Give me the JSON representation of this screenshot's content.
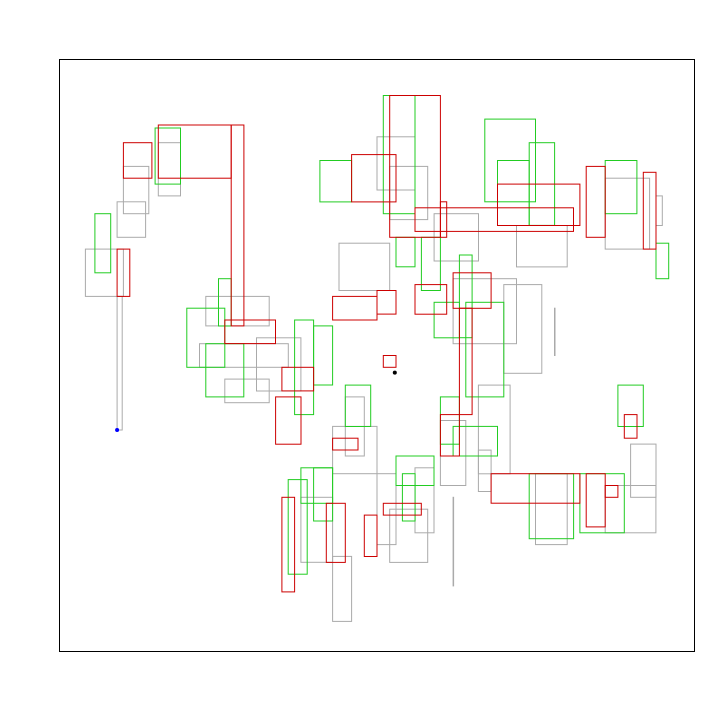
{
  "chart_data": {
    "type": "line",
    "title": "",
    "xlabel": "",
    "ylabel": "",
    "xlim": [
      0,
      1
    ],
    "ylim": [
      0,
      1
    ],
    "grid": false,
    "legend": "none",
    "colors": {
      "gray": "#aaaaaa",
      "green": "#22cc22",
      "red": "#cc0000",
      "start_marker": "#0000ff",
      "end_marker": "#000000"
    },
    "start_point": [
      0.09,
      0.374
    ],
    "end_point": [
      0.528,
      0.471
    ],
    "series": [
      {
        "color_key": "gray",
        "rects": [
          [
            0.09,
            0.374,
            0.098,
            0.6
          ],
          [
            0.04,
            0.6,
            0.1,
            0.68
          ],
          [
            0.09,
            0.7,
            0.135,
            0.76
          ],
          [
            0.1,
            0.74,
            0.14,
            0.82
          ],
          [
            0.155,
            0.77,
            0.19,
            0.86
          ],
          [
            0.23,
            0.6,
            0.33,
            0.55
          ],
          [
            0.22,
            0.48,
            0.36,
            0.52
          ],
          [
            0.26,
            0.46,
            0.33,
            0.42
          ],
          [
            0.31,
            0.44,
            0.38,
            0.53
          ],
          [
            0.44,
            0.61,
            0.52,
            0.69
          ],
          [
            0.52,
            0.73,
            0.58,
            0.82
          ],
          [
            0.5,
            0.78,
            0.56,
            0.87
          ],
          [
            0.59,
            0.66,
            0.66,
            0.74
          ],
          [
            0.62,
            0.52,
            0.72,
            0.63
          ],
          [
            0.66,
            0.3,
            0.71,
            0.45
          ],
          [
            0.7,
            0.47,
            0.76,
            0.62
          ],
          [
            0.78,
            0.5,
            0.78,
            0.58
          ],
          [
            0.72,
            0.65,
            0.8,
            0.72
          ],
          [
            0.86,
            0.68,
            0.93,
            0.8
          ],
          [
            0.94,
            0.72,
            0.95,
            0.77
          ],
          [
            0.75,
            0.18,
            0.8,
            0.3
          ],
          [
            0.86,
            0.2,
            0.94,
            0.28
          ],
          [
            0.9,
            0.26,
            0.94,
            0.35
          ],
          [
            0.62,
            0.11,
            0.62,
            0.26
          ],
          [
            0.52,
            0.15,
            0.58,
            0.24
          ],
          [
            0.5,
            0.18,
            0.53,
            0.3
          ],
          [
            0.43,
            0.05,
            0.46,
            0.16
          ],
          [
            0.38,
            0.15,
            0.43,
            0.26
          ],
          [
            0.43,
            0.3,
            0.5,
            0.38
          ],
          [
            0.45,
            0.33,
            0.48,
            0.43
          ],
          [
            0.6,
            0.28,
            0.64,
            0.39
          ],
          [
            0.66,
            0.27,
            0.68,
            0.34
          ],
          [
            0.56,
            0.2,
            0.59,
            0.31
          ]
        ]
      },
      {
        "color_key": "green",
        "rects": [
          [
            0.055,
            0.64,
            0.08,
            0.74
          ],
          [
            0.15,
            0.79,
            0.19,
            0.885
          ],
          [
            0.25,
            0.55,
            0.27,
            0.63
          ],
          [
            0.23,
            0.43,
            0.29,
            0.52
          ],
          [
            0.2,
            0.48,
            0.26,
            0.58
          ],
          [
            0.37,
            0.4,
            0.4,
            0.56
          ],
          [
            0.41,
            0.76,
            0.46,
            0.83
          ],
          [
            0.51,
            0.74,
            0.56,
            0.94
          ],
          [
            0.69,
            0.72,
            0.74,
            0.83
          ],
          [
            0.67,
            0.76,
            0.75,
            0.9
          ],
          [
            0.74,
            0.72,
            0.78,
            0.86
          ],
          [
            0.86,
            0.74,
            0.91,
            0.83
          ],
          [
            0.94,
            0.63,
            0.96,
            0.69
          ],
          [
            0.63,
            0.53,
            0.65,
            0.67
          ],
          [
            0.59,
            0.53,
            0.63,
            0.59
          ],
          [
            0.6,
            0.35,
            0.63,
            0.43
          ],
          [
            0.64,
            0.43,
            0.7,
            0.59
          ],
          [
            0.74,
            0.19,
            0.81,
            0.3
          ],
          [
            0.82,
            0.2,
            0.89,
            0.3
          ],
          [
            0.88,
            0.38,
            0.92,
            0.45
          ],
          [
            0.38,
            0.31,
            0.43,
            0.25
          ],
          [
            0.36,
            0.13,
            0.39,
            0.29
          ],
          [
            0.4,
            0.22,
            0.43,
            0.31
          ],
          [
            0.54,
            0.22,
            0.56,
            0.3
          ],
          [
            0.53,
            0.28,
            0.59,
            0.33
          ],
          [
            0.53,
            0.65,
            0.56,
            0.7
          ],
          [
            0.57,
            0.61,
            0.6,
            0.7
          ],
          [
            0.4,
            0.45,
            0.43,
            0.55
          ],
          [
            0.45,
            0.38,
            0.49,
            0.45
          ],
          [
            0.62,
            0.33,
            0.69,
            0.38
          ]
        ]
      },
      {
        "color_key": "red",
        "rects": [
          [
            0.09,
            0.6,
            0.11,
            0.68
          ],
          [
            0.1,
            0.8,
            0.145,
            0.86
          ],
          [
            0.155,
            0.8,
            0.27,
            0.89
          ],
          [
            0.27,
            0.55,
            0.29,
            0.89
          ],
          [
            0.26,
            0.52,
            0.34,
            0.56
          ],
          [
            0.43,
            0.56,
            0.5,
            0.6
          ],
          [
            0.46,
            0.76,
            0.53,
            0.84
          ],
          [
            0.52,
            0.7,
            0.6,
            0.94
          ],
          [
            0.6,
            0.7,
            0.61,
            0.76
          ],
          [
            0.56,
            0.71,
            0.81,
            0.75
          ],
          [
            0.69,
            0.72,
            0.82,
            0.79
          ],
          [
            0.83,
            0.7,
            0.86,
            0.82
          ],
          [
            0.92,
            0.68,
            0.94,
            0.81
          ],
          [
            0.56,
            0.57,
            0.61,
            0.62
          ],
          [
            0.62,
            0.58,
            0.68,
            0.64
          ],
          [
            0.63,
            0.4,
            0.65,
            0.58
          ],
          [
            0.5,
            0.57,
            0.53,
            0.61
          ],
          [
            0.51,
            0.48,
            0.53,
            0.5
          ],
          [
            0.6,
            0.33,
            0.63,
            0.4
          ],
          [
            0.68,
            0.25,
            0.82,
            0.3
          ],
          [
            0.83,
            0.21,
            0.86,
            0.3
          ],
          [
            0.86,
            0.26,
            0.88,
            0.28
          ],
          [
            0.89,
            0.36,
            0.91,
            0.4
          ],
          [
            0.42,
            0.15,
            0.45,
            0.25
          ],
          [
            0.48,
            0.16,
            0.5,
            0.23
          ],
          [
            0.51,
            0.23,
            0.57,
            0.25
          ],
          [
            0.34,
            0.35,
            0.38,
            0.43
          ],
          [
            0.43,
            0.34,
            0.47,
            0.36
          ],
          [
            0.35,
            0.44,
            0.4,
            0.48
          ],
          [
            0.35,
            0.1,
            0.37,
            0.26
          ]
        ]
      }
    ]
  }
}
